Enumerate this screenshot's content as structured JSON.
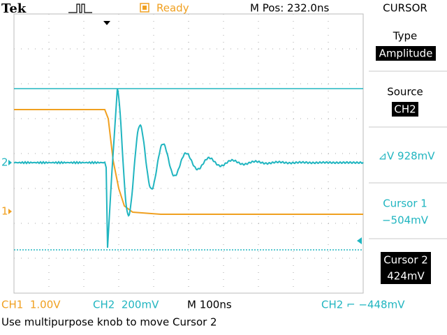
{
  "header": {
    "brand": "Tek",
    "status": "Ready",
    "position": "M Pos: 232.0ns"
  },
  "menu": {
    "title": "CURSOR",
    "type_label": "Type",
    "type_value": "Amplitude",
    "source_label": "Source",
    "source_value": "CH2",
    "delta": "⊿V 928mV",
    "cursor1_label": "Cursor 1",
    "cursor1_value": "−504mV",
    "cursor2_label": "Cursor 2",
    "cursor2_value": "424mV"
  },
  "markers": {
    "ch2": "2",
    "ch1": "1"
  },
  "status_bar": {
    "ch1": "CH1  1.00V",
    "ch2": "CH2  200mV",
    "timebase": "M 100ns",
    "trigger": "CH2 ⌐ −448mV"
  },
  "message": "Use multipurpose knob to move Cursor 2"
}
